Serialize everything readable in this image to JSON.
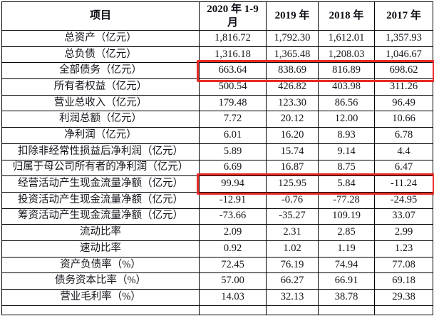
{
  "table": {
    "header": {
      "item_label": "项目",
      "periods": [
        "2020 年 1-9 月",
        "2019 年",
        "2018 年",
        "2017 年"
      ]
    },
    "rows": [
      {
        "label": "总资产（亿元）",
        "values": [
          "1,816.72",
          "1,792.30",
          "1,612.01",
          "1,357.93"
        ],
        "highlighted": false
      },
      {
        "label": "总负债（亿元）",
        "values": [
          "1,316.18",
          "1,365.48",
          "1,208.03",
          "1,046.67"
        ],
        "highlighted": false
      },
      {
        "label": "全部债务（亿元）",
        "values": [
          "663.64",
          "838.69",
          "816.89",
          "698.62"
        ],
        "highlighted": true
      },
      {
        "label": "所有者权益（亿元）",
        "values": [
          "500.54",
          "426.82",
          "403.98",
          "311.26"
        ],
        "highlighted": false
      },
      {
        "label": "营业总收入（亿元）",
        "values": [
          "179.48",
          "123.30",
          "86.56",
          "96.49"
        ],
        "highlighted": false
      },
      {
        "label": "利润总额（亿元）",
        "values": [
          "7.72",
          "20.12",
          "12.00",
          "10.66"
        ],
        "highlighted": false
      },
      {
        "label": "净利润（亿元）",
        "values": [
          "6.01",
          "16.20",
          "8.93",
          "6.78"
        ],
        "highlighted": false
      },
      {
        "label": "扣除非经常性损益后净利润（亿元）",
        "values": [
          "5.89",
          "15.74",
          "9.14",
          "4.4"
        ],
        "highlighted": false
      },
      {
        "label": "归属于母公司所有者的净利润（亿元）",
        "values": [
          "6.69",
          "16.87",
          "8.75",
          "6.47"
        ],
        "highlighted": false
      },
      {
        "label": "经营活动产生现金流量净额（亿元）",
        "values": [
          "99.94",
          "125.95",
          "5.84",
          "-11.24"
        ],
        "highlighted": true
      },
      {
        "label": "投资活动产生现金流量净额（亿元）",
        "values": [
          "-12.91",
          "-0.76",
          "-77.28",
          "-24.95"
        ],
        "highlighted": false
      },
      {
        "label": "筹资活动产生现金流量净额（亿元）",
        "values": [
          "-73.66",
          "-35.27",
          "109.19",
          "33.07"
        ],
        "highlighted": false
      },
      {
        "label": "流动比率",
        "values": [
          "2.09",
          "2.31",
          "2.85",
          "2.99"
        ],
        "highlighted": false
      },
      {
        "label": "速动比率",
        "values": [
          "0.92",
          "1.02",
          "1.19",
          "1.23"
        ],
        "highlighted": false
      },
      {
        "label": "资产负债率（%）",
        "values": [
          "72.45",
          "76.19",
          "74.94",
          "77.08"
        ],
        "highlighted": false
      },
      {
        "label": "债务资本比率（%）",
        "values": [
          "57.00",
          "66.27",
          "66.91",
          "69.18"
        ],
        "highlighted": false
      },
      {
        "label": "营业毛利率（%）",
        "values": [
          "14.03",
          "32.13",
          "38.78",
          "29.38"
        ],
        "highlighted": false
      }
    ],
    "highlight_color": "#e82b24"
  }
}
